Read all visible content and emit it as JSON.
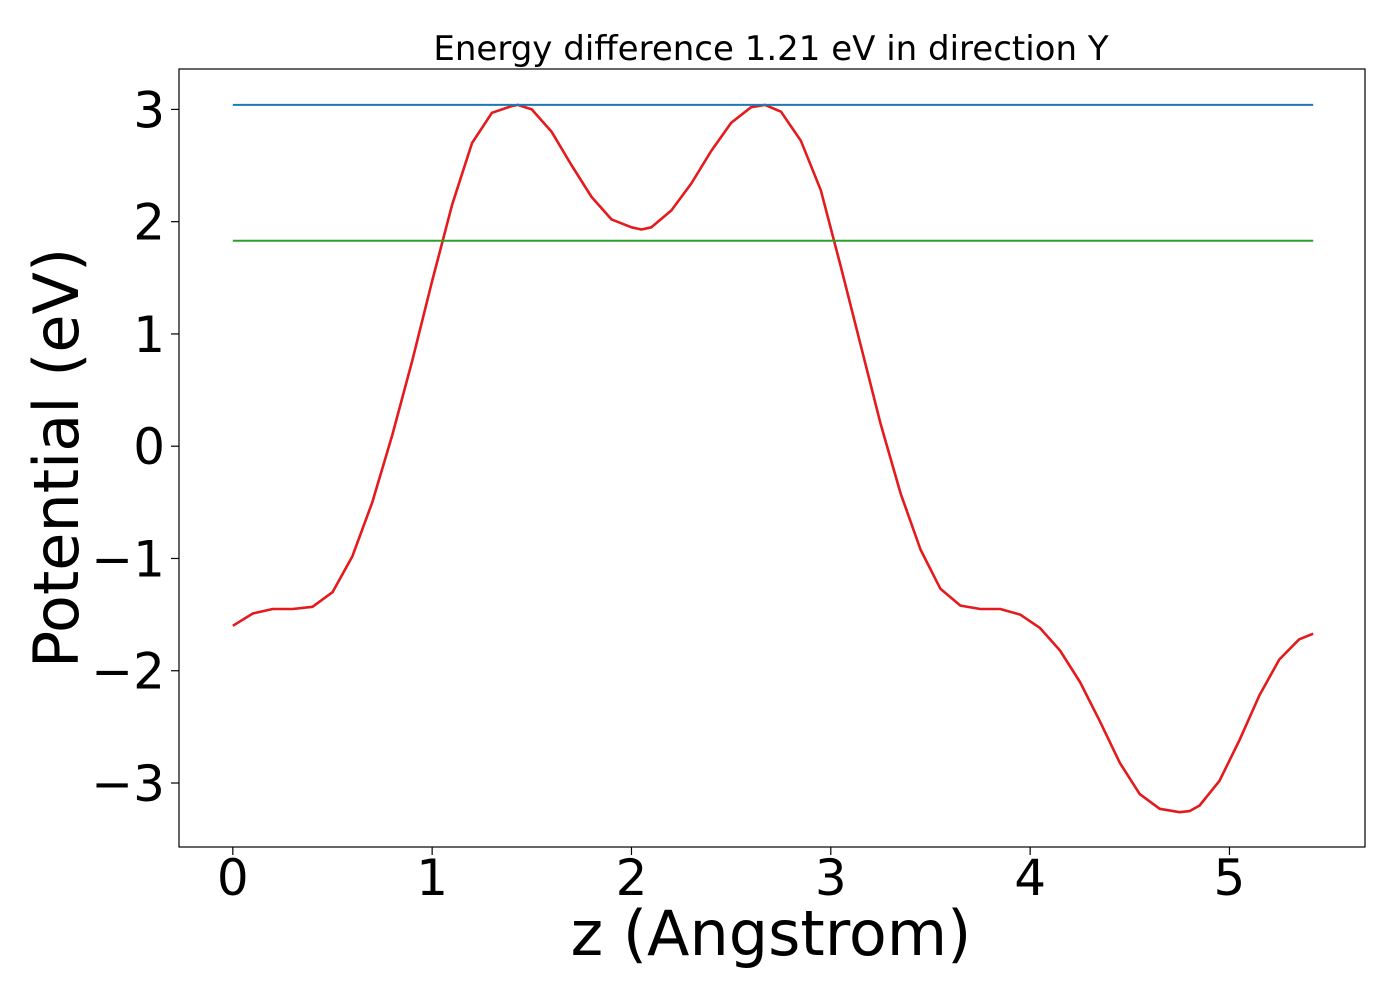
{
  "chart_data": {
    "type": "line",
    "title": "Energy difference 1.21 eV in direction Y",
    "xlabel": "z (Angstrom)",
    "ylabel": "Potential (eV)",
    "xlim": [
      -0.27,
      5.68
    ],
    "ylim": [
      -3.57,
      3.36
    ],
    "xticks": [
      0,
      1,
      2,
      3,
      4,
      5
    ],
    "yticks": [
      -3,
      -2,
      -1,
      0,
      1,
      2,
      3
    ],
    "xtick_labels": [
      "0",
      "1",
      "2",
      "3",
      "4",
      "5"
    ],
    "ytick_labels": [
      "−3",
      "−2",
      "−1",
      "0",
      "1",
      "2",
      "3"
    ],
    "grid": false,
    "legend": "none",
    "series": [
      {
        "color": "#e41a1c",
        "x": [
          0,
          0.1,
          0.2,
          0.3,
          0.4,
          0.5,
          0.6,
          0.7,
          0.8,
          0.9,
          1.0,
          1.1,
          1.2,
          1.3,
          1.4,
          1.43,
          1.5,
          1.6,
          1.7,
          1.8,
          1.9,
          2.0,
          2.05,
          2.1,
          2.2,
          2.3,
          2.4,
          2.5,
          2.6,
          2.67,
          2.75,
          2.85,
          2.95,
          3.05,
          3.15,
          3.25,
          3.35,
          3.45,
          3.55,
          3.65,
          3.75,
          3.85,
          3.95,
          4.05,
          4.15,
          4.25,
          4.35,
          4.45,
          4.55,
          4.65,
          4.75,
          4.8,
          4.85,
          4.95,
          5.05,
          5.15,
          5.25,
          5.35,
          5.42
        ],
        "values": [
          -1.6,
          -1.49,
          -1.45,
          -1.45,
          -1.43,
          -1.3,
          -0.98,
          -0.5,
          0.1,
          0.76,
          1.47,
          2.15,
          2.7,
          2.97,
          3.03,
          3.04,
          3.0,
          2.8,
          2.5,
          2.22,
          2.02,
          1.95,
          1.93,
          1.95,
          2.1,
          2.34,
          2.63,
          2.88,
          3.02,
          3.04,
          2.98,
          2.72,
          2.28,
          1.6,
          0.9,
          0.2,
          -0.42,
          -0.92,
          -1.27,
          -1.42,
          -1.45,
          -1.45,
          -1.5,
          -1.62,
          -1.82,
          -2.1,
          -2.45,
          -2.82,
          -3.1,
          -3.23,
          -3.26,
          -3.25,
          -3.2,
          -2.98,
          -2.62,
          -2.22,
          -1.9,
          -1.72,
          -1.67
        ]
      },
      {
        "color": "#1f77b4",
        "x": [
          0,
          5.42
        ],
        "values": [
          3.04,
          3.04
        ]
      },
      {
        "color": "#2ca02c",
        "x": [
          0,
          5.42
        ],
        "values": [
          1.83,
          1.83
        ]
      }
    ]
  }
}
